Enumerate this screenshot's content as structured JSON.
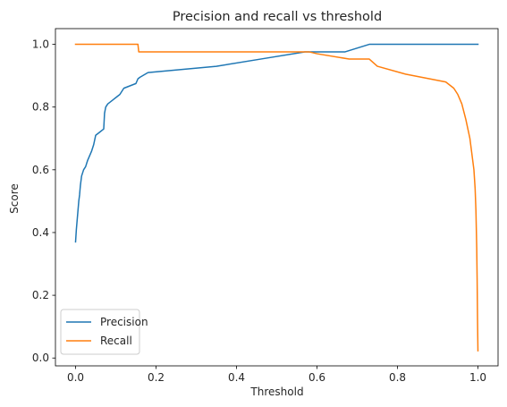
{
  "chart_data": {
    "type": "line",
    "title": "Precision and recall vs threshold",
    "xlabel": "Threshold",
    "ylabel": "Score",
    "xlim": [
      -0.05,
      1.05
    ],
    "ylim": [
      -0.025,
      1.05
    ],
    "xticks": [
      0.0,
      0.2,
      0.4,
      0.6,
      0.8,
      1.0
    ],
    "xtick_labels": [
      "0.0",
      "0.2",
      "0.4",
      "0.6",
      "0.8",
      "1.0"
    ],
    "yticks": [
      0.0,
      0.2,
      0.4,
      0.6,
      0.8,
      1.0
    ],
    "ytick_labels": [
      "0.0",
      "0.2",
      "0.4",
      "0.6",
      "0.8",
      "1.0"
    ],
    "grid": false,
    "legend_position": "lower-left",
    "series": [
      {
        "name": "Precision",
        "color": "#1f77b4",
        "x": [
          0.0,
          0.002,
          0.004,
          0.006,
          0.008,
          0.01,
          0.012,
          0.015,
          0.02,
          0.025,
          0.03,
          0.04,
          0.045,
          0.05,
          0.06,
          0.07,
          0.072,
          0.075,
          0.08,
          0.09,
          0.1,
          0.11,
          0.12,
          0.14,
          0.15,
          0.155,
          0.16,
          0.18,
          0.35,
          0.47,
          0.57,
          0.58,
          0.67,
          0.73,
          0.8,
          0.9,
          1.0
        ],
        "y": [
          0.37,
          0.41,
          0.44,
          0.47,
          0.5,
          0.52,
          0.55,
          0.58,
          0.6,
          0.61,
          0.63,
          0.66,
          0.68,
          0.71,
          0.72,
          0.73,
          0.78,
          0.8,
          0.81,
          0.82,
          0.83,
          0.84,
          0.86,
          0.87,
          0.875,
          0.89,
          0.895,
          0.91,
          0.93,
          0.955,
          0.976,
          0.976,
          0.976,
          1.0,
          1.0,
          1.0,
          1.0
        ]
      },
      {
        "name": "Recall",
        "color": "#ff7f0e",
        "x": [
          0.0,
          0.155,
          0.157,
          0.57,
          0.58,
          0.6,
          0.68,
          0.73,
          0.75,
          0.82,
          0.92,
          0.94,
          0.95,
          0.96,
          0.97,
          0.98,
          0.985,
          0.99,
          0.993,
          0.995,
          0.997,
          0.998,
          0.999,
          1.0
        ],
        "y": [
          1.0,
          1.0,
          0.976,
          0.976,
          0.976,
          0.97,
          0.953,
          0.953,
          0.93,
          0.905,
          0.88,
          0.86,
          0.84,
          0.81,
          0.76,
          0.7,
          0.65,
          0.6,
          0.54,
          0.47,
          0.35,
          0.25,
          0.12,
          0.023
        ]
      }
    ]
  }
}
